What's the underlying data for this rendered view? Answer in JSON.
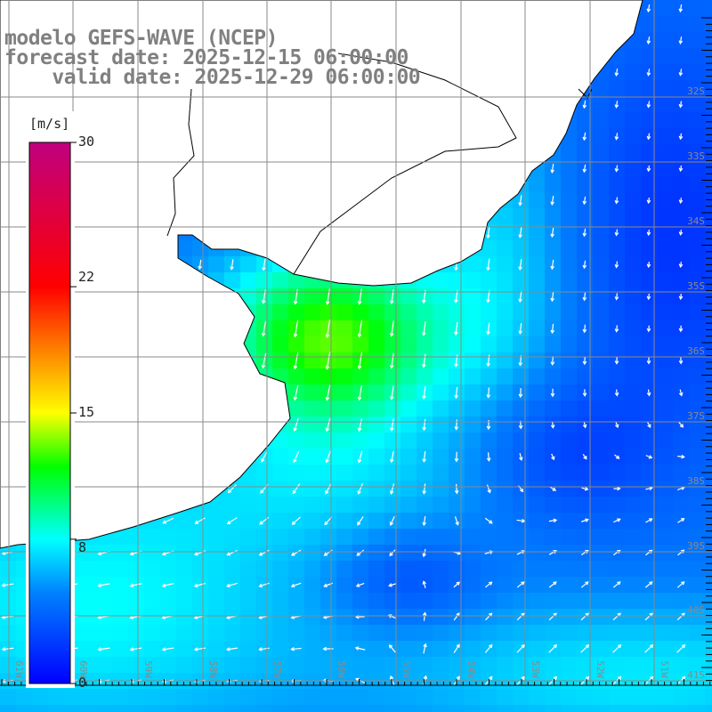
{
  "title": {
    "model": "modelo GEFS-WAVE (NCEP)",
    "forecast": "forecast date: 2025-12-15 06:00:00",
    "valid": "    valid date: 2025-12-29 06:00:00"
  },
  "colorbar": {
    "unit": "[m/s]",
    "ticks": [
      {
        "label": "30",
        "value": 30
      },
      {
        "label": "22",
        "value": 22
      },
      {
        "label": "15",
        "value": 15
      },
      {
        "label": "8",
        "value": 8
      },
      {
        "label": "0",
        "value": 0
      }
    ],
    "min": 0,
    "max": 30,
    "stops": [
      {
        "v": 0,
        "c": "#0000ff"
      },
      {
        "v": 5,
        "c": "#0080ff"
      },
      {
        "v": 8,
        "c": "#00ffff"
      },
      {
        "v": 12,
        "c": "#00ff00"
      },
      {
        "v": 15,
        "c": "#ffff00"
      },
      {
        "v": 18.5,
        "c": "#ff8000"
      },
      {
        "v": 22,
        "c": "#ff0000"
      },
      {
        "v": 30,
        "c": "#c0007f"
      }
    ]
  },
  "lat_labels": [
    "32S",
    "33S",
    "34S",
    "35S",
    "36S",
    "37S",
    "38S",
    "39S",
    "40S",
    "41S"
  ],
  "lon_labels": [
    "61W",
    "60W",
    "59W",
    "58W",
    "57W",
    "56W",
    "55W",
    "54W",
    "53W",
    "52W",
    "51W"
  ],
  "colors": {
    "grid": "#8a8a8a",
    "title": "#808080",
    "coast": "#000000",
    "arrow": "#ffffff"
  }
}
